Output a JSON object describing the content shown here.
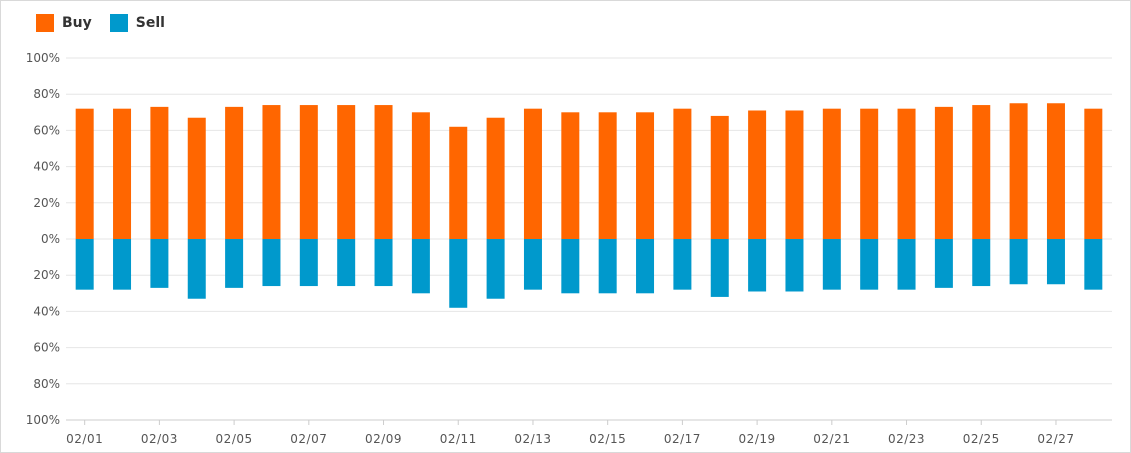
{
  "colors": {
    "buy": "#ff6600",
    "sell": "#0099cc",
    "grid": "#e6e6e6",
    "axis": "#cccccc"
  },
  "legend": [
    {
      "name": "Buy",
      "color": "#ff6600"
    },
    {
      "name": "Sell",
      "color": "#0099cc"
    }
  ],
  "chart_data": {
    "type": "bar",
    "stacked": "diverging",
    "title": "",
    "xlabel": "",
    "ylabel": "",
    "ylim": [
      -100,
      100
    ],
    "y_ticks": [
      "100%",
      "80%",
      "60%",
      "40%",
      "20%",
      "0%",
      "20%",
      "40%",
      "60%",
      "80%",
      "100%"
    ],
    "x_tick_labels": [
      "02/01",
      "02/03",
      "02/05",
      "02/07",
      "02/09",
      "02/11",
      "02/13",
      "02/15",
      "02/17",
      "02/19",
      "02/21",
      "02/23",
      "02/25",
      "02/27"
    ],
    "grid": true,
    "legend_position": "top-left",
    "categories": [
      "02/01",
      "02/02",
      "02/03",
      "02/04",
      "02/05",
      "02/06",
      "02/07",
      "02/08",
      "02/09",
      "02/10",
      "02/11",
      "02/12",
      "02/13",
      "02/14",
      "02/15",
      "02/16",
      "02/17",
      "02/18",
      "02/19",
      "02/20",
      "02/21",
      "02/22",
      "02/23",
      "02/24",
      "02/25",
      "02/26",
      "02/27",
      "02/28"
    ],
    "series": [
      {
        "name": "Buy",
        "values": [
          72,
          72,
          73,
          67,
          73,
          74,
          74,
          74,
          74,
          70,
          62,
          67,
          72,
          70,
          70,
          70,
          72,
          68,
          71,
          71,
          72,
          72,
          72,
          73,
          74,
          75,
          75,
          72
        ]
      },
      {
        "name": "Sell",
        "values": [
          28,
          28,
          27,
          33,
          27,
          26,
          26,
          26,
          26,
          30,
          38,
          33,
          28,
          30,
          30,
          30,
          28,
          32,
          29,
          29,
          28,
          28,
          28,
          27,
          26,
          25,
          25,
          28
        ]
      }
    ]
  }
}
